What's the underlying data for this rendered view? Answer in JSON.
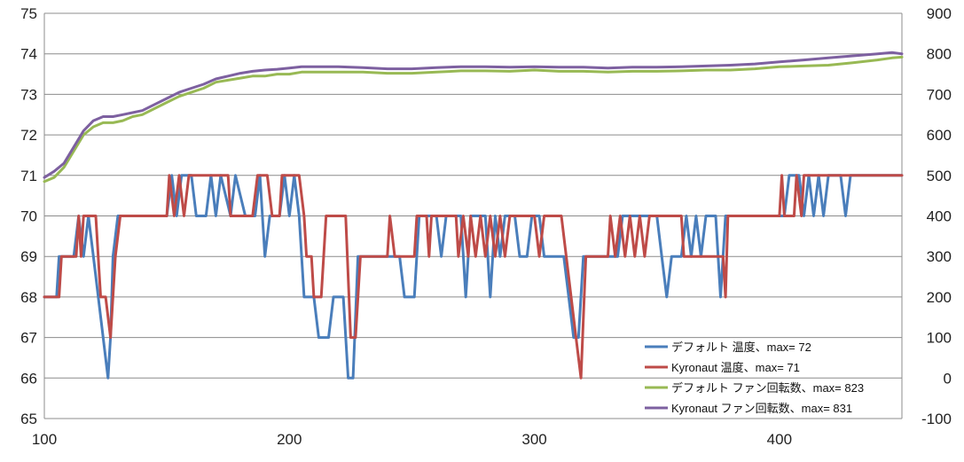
{
  "chart_data": {
    "type": "line",
    "title": "",
    "xlabel": "",
    "ylabel": "",
    "xlim": [
      100,
      450
    ],
    "x_ticks": [
      100,
      200,
      300,
      400
    ],
    "ylim_left": [
      65,
      75
    ],
    "y_ticks_left": [
      65,
      66,
      67,
      68,
      69,
      70,
      71,
      72,
      73,
      74,
      75
    ],
    "ylim_right": [
      -100,
      900
    ],
    "y_ticks_right": [
      -100,
      0,
      100,
      200,
      300,
      400,
      500,
      600,
      700,
      800,
      900
    ],
    "grid": "horizontal",
    "legend_position": "bottom-right",
    "series": [
      {
        "name": "デフォルト 温度、max= 72",
        "axis": "left",
        "color": "#4a7ebb",
        "points": [
          [
            100,
            68
          ],
          [
            105,
            68
          ],
          [
            106,
            69
          ],
          [
            112,
            69
          ],
          [
            114,
            70
          ],
          [
            116,
            69
          ],
          [
            118,
            70
          ],
          [
            120,
            69
          ],
          [
            122,
            68
          ],
          [
            124,
            67
          ],
          [
            126,
            66
          ],
          [
            127,
            67
          ],
          [
            128,
            69
          ],
          [
            130,
            70
          ],
          [
            150,
            70
          ],
          [
            152,
            71
          ],
          [
            154,
            70
          ],
          [
            156,
            71
          ],
          [
            160,
            71
          ],
          [
            162,
            70
          ],
          [
            166,
            70
          ],
          [
            168,
            71
          ],
          [
            170,
            70
          ],
          [
            172,
            71
          ],
          [
            176,
            70
          ],
          [
            178,
            71
          ],
          [
            182,
            70
          ],
          [
            186,
            70
          ],
          [
            188,
            71
          ],
          [
            190,
            69
          ],
          [
            192,
            70
          ],
          [
            196,
            70
          ],
          [
            198,
            71
          ],
          [
            200,
            70
          ],
          [
            202,
            71
          ],
          [
            204,
            70
          ],
          [
            206,
            68
          ],
          [
            210,
            68
          ],
          [
            212,
            67
          ],
          [
            216,
            67
          ],
          [
            218,
            68
          ],
          [
            222,
            68
          ],
          [
            224,
            66
          ],
          [
            226,
            66
          ],
          [
            228,
            69
          ],
          [
            235,
            69
          ],
          [
            245,
            69
          ],
          [
            247,
            68
          ],
          [
            251,
            68
          ],
          [
            253,
            70
          ],
          [
            260,
            70
          ],
          [
            262,
            69
          ],
          [
            264,
            70
          ],
          [
            270,
            70
          ],
          [
            272,
            68
          ],
          [
            274,
            70
          ],
          [
            280,
            70
          ],
          [
            282,
            68
          ],
          [
            284,
            70
          ],
          [
            286,
            69
          ],
          [
            288,
            70
          ],
          [
            292,
            70
          ],
          [
            294,
            69
          ],
          [
            297,
            69
          ],
          [
            299,
            70
          ],
          [
            302,
            70
          ],
          [
            304,
            69
          ],
          [
            312,
            69
          ],
          [
            314,
            68
          ],
          [
            316,
            67
          ],
          [
            318,
            67
          ],
          [
            320,
            69
          ],
          [
            334,
            69
          ],
          [
            336,
            70
          ],
          [
            340,
            70
          ],
          [
            344,
            70
          ],
          [
            350,
            70
          ],
          [
            352,
            69
          ],
          [
            354,
            68
          ],
          [
            356,
            69
          ],
          [
            360,
            69
          ],
          [
            362,
            70
          ],
          [
            364,
            69
          ],
          [
            366,
            70
          ],
          [
            368,
            69
          ],
          [
            370,
            70
          ],
          [
            374,
            70
          ],
          [
            376,
            68
          ],
          [
            378,
            70
          ],
          [
            390,
            70
          ],
          [
            398,
            70
          ],
          [
            402,
            70
          ],
          [
            404,
            71
          ],
          [
            408,
            71
          ],
          [
            410,
            70
          ],
          [
            412,
            71
          ],
          [
            414,
            70
          ],
          [
            416,
            71
          ],
          [
            418,
            70
          ],
          [
            420,
            71
          ],
          [
            425,
            71
          ],
          [
            427,
            70
          ],
          [
            429,
            71
          ],
          [
            450,
            71
          ]
        ]
      },
      {
        "name": "Kyronaut 温度、max= 71",
        "axis": "left",
        "color": "#be4b48",
        "points": [
          [
            100,
            68
          ],
          [
            106,
            68
          ],
          [
            107,
            69
          ],
          [
            113,
            69
          ],
          [
            114,
            70
          ],
          [
            115,
            69
          ],
          [
            116,
            70
          ],
          [
            121,
            70
          ],
          [
            123,
            68
          ],
          [
            125,
            68
          ],
          [
            127,
            67
          ],
          [
            129,
            69
          ],
          [
            131,
            70
          ],
          [
            150,
            70
          ],
          [
            151,
            71
          ],
          [
            153,
            70
          ],
          [
            155,
            71
          ],
          [
            157,
            70
          ],
          [
            159,
            71
          ],
          [
            175,
            71
          ],
          [
            176,
            70
          ],
          [
            185,
            70
          ],
          [
            187,
            71
          ],
          [
            191,
            71
          ],
          [
            193,
            70
          ],
          [
            196,
            70
          ],
          [
            197,
            71
          ],
          [
            204,
            71
          ],
          [
            206,
            70
          ],
          [
            207,
            69
          ],
          [
            209,
            69
          ],
          [
            210,
            68
          ],
          [
            213,
            68
          ],
          [
            215,
            70
          ],
          [
            223,
            70
          ],
          [
            225,
            67
          ],
          [
            227,
            67
          ],
          [
            229,
            69
          ],
          [
            240,
            69
          ],
          [
            241,
            70
          ],
          [
            243,
            69
          ],
          [
            251,
            69
          ],
          [
            252,
            70
          ],
          [
            256,
            70
          ],
          [
            257,
            69
          ],
          [
            258,
            70
          ],
          [
            268,
            70
          ],
          [
            269,
            69
          ],
          [
            271,
            70
          ],
          [
            273,
            69
          ],
          [
            274,
            70
          ],
          [
            276,
            69
          ],
          [
            278,
            70
          ],
          [
            280,
            69
          ],
          [
            282,
            70
          ],
          [
            284,
            69
          ],
          [
            286,
            70
          ],
          [
            288,
            69
          ],
          [
            290,
            70
          ],
          [
            300,
            70
          ],
          [
            302,
            69
          ],
          [
            304,
            70
          ],
          [
            311,
            70
          ],
          [
            313,
            69
          ],
          [
            315,
            68
          ],
          [
            317,
            67
          ],
          [
            319,
            66
          ],
          [
            321,
            69
          ],
          [
            330,
            69
          ],
          [
            331,
            70
          ],
          [
            333,
            69
          ],
          [
            335,
            70
          ],
          [
            337,
            69
          ],
          [
            339,
            70
          ],
          [
            341,
            69
          ],
          [
            343,
            70
          ],
          [
            345,
            69
          ],
          [
            347,
            70
          ],
          [
            360,
            70
          ],
          [
            361,
            69
          ],
          [
            377,
            69
          ],
          [
            378,
            68
          ],
          [
            379,
            70
          ],
          [
            400,
            70
          ],
          [
            401,
            71
          ],
          [
            402,
            70
          ],
          [
            406,
            70
          ],
          [
            407,
            71
          ],
          [
            409,
            70
          ],
          [
            410,
            71
          ],
          [
            450,
            71
          ]
        ]
      },
      {
        "name": "デフォルト ファン回転数、max= 823",
        "axis": "right",
        "color": "#98b954",
        "points": [
          [
            100,
            485
          ],
          [
            104,
            495
          ],
          [
            108,
            520
          ],
          [
            112,
            560
          ],
          [
            116,
            600
          ],
          [
            120,
            620
          ],
          [
            124,
            630
          ],
          [
            128,
            630
          ],
          [
            132,
            635
          ],
          [
            136,
            645
          ],
          [
            140,
            650
          ],
          [
            145,
            665
          ],
          [
            150,
            680
          ],
          [
            155,
            695
          ],
          [
            160,
            705
          ],
          [
            165,
            715
          ],
          [
            170,
            730
          ],
          [
            175,
            735
          ],
          [
            180,
            740
          ],
          [
            185,
            745
          ],
          [
            190,
            745
          ],
          [
            195,
            750
          ],
          [
            200,
            750
          ],
          [
            205,
            755
          ],
          [
            210,
            755
          ],
          [
            220,
            755
          ],
          [
            230,
            755
          ],
          [
            240,
            752
          ],
          [
            250,
            752
          ],
          [
            260,
            755
          ],
          [
            270,
            758
          ],
          [
            280,
            758
          ],
          [
            290,
            757
          ],
          [
            300,
            760
          ],
          [
            310,
            757
          ],
          [
            320,
            757
          ],
          [
            330,
            755
          ],
          [
            340,
            757
          ],
          [
            350,
            757
          ],
          [
            360,
            758
          ],
          [
            370,
            760
          ],
          [
            380,
            760
          ],
          [
            390,
            763
          ],
          [
            400,
            768
          ],
          [
            410,
            770
          ],
          [
            420,
            772
          ],
          [
            430,
            778
          ],
          [
            440,
            785
          ],
          [
            446,
            790
          ],
          [
            450,
            792
          ]
        ]
      },
      {
        "name": "Kyronaut ファン回転数、max= 831",
        "axis": "right",
        "color": "#7d60a0",
        "points": [
          [
            100,
            495
          ],
          [
            104,
            510
          ],
          [
            108,
            530
          ],
          [
            112,
            570
          ],
          [
            116,
            610
          ],
          [
            120,
            635
          ],
          [
            124,
            645
          ],
          [
            128,
            645
          ],
          [
            132,
            650
          ],
          [
            136,
            655
          ],
          [
            140,
            660
          ],
          [
            145,
            675
          ],
          [
            150,
            690
          ],
          [
            155,
            705
          ],
          [
            160,
            715
          ],
          [
            165,
            725
          ],
          [
            170,
            738
          ],
          [
            175,
            745
          ],
          [
            180,
            752
          ],
          [
            185,
            757
          ],
          [
            190,
            760
          ],
          [
            195,
            762
          ],
          [
            200,
            765
          ],
          [
            205,
            768
          ],
          [
            210,
            768
          ],
          [
            220,
            768
          ],
          [
            230,
            766
          ],
          [
            240,
            763
          ],
          [
            250,
            763
          ],
          [
            260,
            766
          ],
          [
            270,
            768
          ],
          [
            280,
            768
          ],
          [
            290,
            767
          ],
          [
            300,
            768
          ],
          [
            310,
            767
          ],
          [
            320,
            767
          ],
          [
            330,
            765
          ],
          [
            340,
            767
          ],
          [
            350,
            767
          ],
          [
            360,
            768
          ],
          [
            370,
            770
          ],
          [
            380,
            772
          ],
          [
            390,
            775
          ],
          [
            400,
            780
          ],
          [
            410,
            785
          ],
          [
            420,
            790
          ],
          [
            430,
            795
          ],
          [
            440,
            800
          ],
          [
            446,
            803
          ],
          [
            450,
            800
          ]
        ]
      }
    ]
  }
}
